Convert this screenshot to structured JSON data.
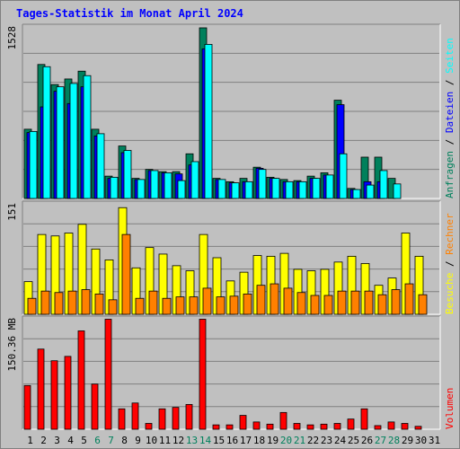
{
  "colors": {
    "background": "#c0c0c0",
    "title": "#0000ff",
    "panel_bg": "#c0c0c0",
    "grid": "#808080",
    "hits": "#00805c",
    "files": "#0000ff",
    "pages": "#00ffff",
    "visits": "#ffff00",
    "sites": "#ff8000",
    "kbytes": "#ff0000",
    "bar_edge": "#000000",
    "weekend_label": "#00805c",
    "weekday_label": "#000000"
  },
  "chart_data": {
    "type": "bar",
    "title": "Tages-Statistik im Monat April 2024",
    "categories": [
      "1",
      "2",
      "3",
      "4",
      "5",
      "6",
      "7",
      "8",
      "9",
      "10",
      "11",
      "12",
      "13",
      "14",
      "15",
      "16",
      "17",
      "18",
      "19",
      "20",
      "21",
      "22",
      "23",
      "24",
      "25",
      "26",
      "27",
      "28",
      "29",
      "30",
      "31"
    ],
    "weekend_days": [
      "6",
      "7",
      "13",
      "14",
      "20",
      "21",
      "27",
      "28"
    ],
    "panels": [
      {
        "id": "hits",
        "ymax_label": "1528",
        "ylim": [
          0,
          1528
        ],
        "right_label_parts": [
          {
            "text": "Anfragen",
            "color": "#00805c"
          },
          {
            "text": " / ",
            "color": "#000000"
          },
          {
            "text": "Dateien",
            "color": "#0000ff"
          },
          {
            "text": " / ",
            "color": "#000000"
          },
          {
            "text": "Seiten",
            "color": "#00ffff"
          }
        ],
        "series": [
          {
            "name": "Anfragen",
            "color": "#00805c",
            "values": [
              620,
              1200,
              1020,
              1070,
              1140,
              620,
              200,
              470,
              180,
              260,
              240,
              240,
              400,
              1528,
              180,
              150,
              180,
              280,
              190,
              170,
              160,
              200,
              230,
              880,
              90,
              370,
              370,
              180,
              0,
              0,
              0
            ]
          },
          {
            "name": "Dateien",
            "color": "#0000ff",
            "values": [
              590,
              820,
              960,
              850,
              1000,
              560,
              180,
              410,
              170,
              250,
              230,
              220,
              300,
              1340,
              170,
              140,
              150,
              270,
              180,
              150,
              150,
              180,
              210,
              840,
              80,
              150,
              150,
              0,
              0,
              0,
              0
            ]
          },
          {
            "name": "Seiten",
            "color": "#00ffff",
            "values": [
              600,
              1180,
              1000,
              1030,
              1100,
              580,
              190,
              430,
              170,
              250,
              230,
              160,
              330,
              1380,
              170,
              140,
              150,
              260,
              180,
              150,
              150,
              180,
              210,
              400,
              80,
              120,
              250,
              130,
              0,
              0,
              0
            ]
          }
        ]
      },
      {
        "id": "visits",
        "ymax_label": "151",
        "ylim": [
          0,
          151
        ],
        "right_label_parts": [
          {
            "text": "Besuche",
            "color": "#ffff00"
          },
          {
            "text": " / ",
            "color": "#000000"
          },
          {
            "text": "Rechner",
            "color": "#ff8000"
          }
        ],
        "series": [
          {
            "name": "Besuche",
            "color": "#ffff00",
            "values": [
              45,
              110,
              108,
              112,
              124,
              90,
              75,
              147,
              64,
              92,
              83,
              67,
              60,
              110,
              78,
              46,
              58,
              81,
              80,
              84,
              62,
              60,
              62,
              72,
              80,
              70,
              40,
              50,
              112,
              80,
              0
            ]
          },
          {
            "name": "Rechner",
            "color": "#ff8000",
            "values": [
              22,
              32,
              30,
              32,
              34,
              28,
              20,
              110,
              22,
              32,
              22,
              24,
              24,
              36,
              24,
              25,
              28,
              40,
              42,
              36,
              30,
              26,
              26,
              32,
              32,
              32,
              27,
              34,
              42,
              27,
              0
            ]
          }
        ]
      },
      {
        "id": "kbytes",
        "ymax_label": "150.36 MB",
        "ylim": [
          0,
          150.36
        ],
        "right_label_parts": [
          {
            "text": "Volumen",
            "color": "#ff0000"
          }
        ],
        "series": [
          {
            "name": "Volumen",
            "color": "#ff0000",
            "values": [
              60,
              110,
              94,
              100,
              135,
              62,
              151,
              28,
              36,
              8,
              28,
              30,
              34,
              151,
              6,
              6,
              19,
              10,
              7,
              23,
              8,
              6,
              7,
              8,
              14,
              28,
              5,
              10,
              8,
              4,
              0
            ]
          }
        ]
      }
    ]
  }
}
